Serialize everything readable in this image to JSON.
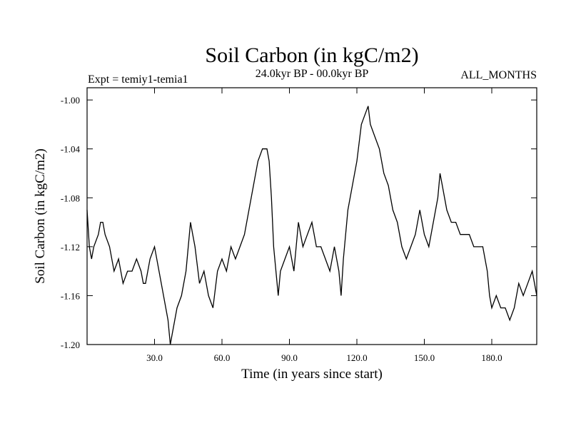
{
  "chart_data": {
    "type": "line",
    "title": "Soil Carbon (in kgC/m2)",
    "subtitle": "24.0kyr BP - 00.0kyr BP",
    "left_note": "Expt = temiy1-temia1",
    "right_note": "ALL_MONTHS",
    "xlabel": "Time (in years since start)",
    "ylabel": "Soil Carbon (in kgC/m2)",
    "xlim": [
      0,
      200
    ],
    "ylim": [
      -1.2,
      -0.99
    ],
    "x_ticks": [
      30,
      60,
      90,
      120,
      150,
      180
    ],
    "x_tick_labels": [
      "30.0",
      "60.0",
      "90.0",
      "120.0",
      "150.0",
      "180.0"
    ],
    "y_ticks": [
      -1.2,
      -1.16,
      -1.12,
      -1.08,
      -1.04,
      -1.0
    ],
    "y_tick_labels": [
      "-1.20",
      "-1.16",
      "-1.12",
      "-1.08",
      "-1.04",
      "-1.00"
    ],
    "line_color": "#000000",
    "series": [
      {
        "x": [
          0,
          1,
          2,
          3,
          5,
          6,
          7,
          8,
          10,
          12,
          14,
          16,
          18,
          20,
          22,
          24,
          25,
          26,
          28,
          30,
          32,
          34,
          36,
          37,
          38,
          40,
          42,
          44,
          46,
          47,
          48,
          50,
          52,
          54,
          56,
          58,
          60,
          62,
          64,
          66,
          68,
          70,
          72,
          74,
          76,
          78,
          80,
          81,
          82,
          83,
          84,
          85,
          86,
          88,
          90,
          92,
          94,
          96,
          98,
          100,
          102,
          104,
          106,
          108,
          110,
          112,
          113,
          114,
          116,
          118,
          120,
          122,
          124,
          125,
          126,
          128,
          130,
          132,
          134,
          136,
          138,
          140,
          142,
          144,
          146,
          148,
          150,
          152,
          154,
          156,
          157,
          158,
          160,
          162,
          164,
          166,
          168,
          170,
          172,
          174,
          176,
          178,
          179,
          180,
          182,
          184,
          186,
          188,
          190,
          192,
          194,
          196,
          198,
          200
        ],
        "values": [
          -1.09,
          -1.12,
          -1.13,
          -1.12,
          -1.11,
          -1.1,
          -1.1,
          -1.11,
          -1.12,
          -1.14,
          -1.13,
          -1.15,
          -1.14,
          -1.14,
          -1.13,
          -1.14,
          -1.15,
          -1.15,
          -1.13,
          -1.12,
          -1.14,
          -1.16,
          -1.18,
          -1.2,
          -1.19,
          -1.17,
          -1.16,
          -1.14,
          -1.1,
          -1.11,
          -1.12,
          -1.15,
          -1.14,
          -1.16,
          -1.17,
          -1.14,
          -1.13,
          -1.14,
          -1.12,
          -1.13,
          -1.12,
          -1.11,
          -1.09,
          -1.07,
          -1.05,
          -1.04,
          -1.04,
          -1.05,
          -1.08,
          -1.12,
          -1.14,
          -1.16,
          -1.14,
          -1.13,
          -1.12,
          -1.14,
          -1.1,
          -1.12,
          -1.11,
          -1.1,
          -1.12,
          -1.12,
          -1.13,
          -1.14,
          -1.12,
          -1.14,
          -1.16,
          -1.13,
          -1.09,
          -1.07,
          -1.05,
          -1.02,
          -1.01,
          -1.005,
          -1.02,
          -1.03,
          -1.04,
          -1.06,
          -1.07,
          -1.09,
          -1.1,
          -1.12,
          -1.13,
          -1.12,
          -1.11,
          -1.09,
          -1.11,
          -1.12,
          -1.1,
          -1.08,
          -1.06,
          -1.07,
          -1.09,
          -1.1,
          -1.1,
          -1.11,
          -1.11,
          -1.11,
          -1.12,
          -1.12,
          -1.12,
          -1.14,
          -1.16,
          -1.17,
          -1.16,
          -1.17,
          -1.17,
          -1.18,
          -1.17,
          -1.15,
          -1.16,
          -1.15,
          -1.14,
          -1.16
        ]
      }
    ]
  }
}
